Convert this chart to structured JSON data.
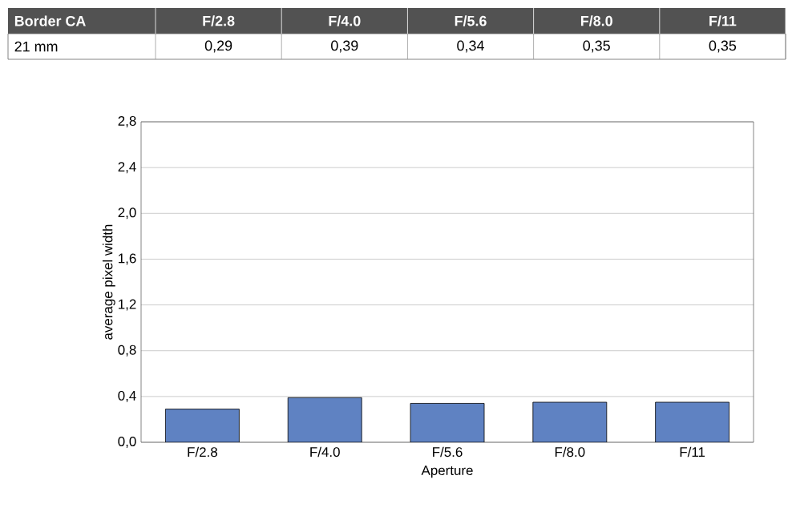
{
  "chart_data": {
    "type": "bar",
    "categories": [
      "F/2.8",
      "F/4.0",
      "F/5.6",
      "F/8.0",
      "F/11"
    ],
    "values": [
      0.29,
      0.39,
      0.34,
      0.35,
      0.35
    ],
    "value_labels": [
      "0,29",
      "0,39",
      "0,34",
      "0,35",
      "0,35"
    ],
    "color": "#5f82c2",
    "xlabel": "Aperture",
    "ylabel": "average pixel width",
    "annotations": [
      "Border CA",
      "21 mm"
    ],
    "ylim": [
      0,
      2.8
    ],
    "yticks": [
      {
        "value": 0,
        "label": "0,0"
      },
      {
        "value": 0.4,
        "label": "0,4"
      },
      {
        "value": 0.8,
        "label": "0,8"
      },
      {
        "value": 1.2,
        "label": "1,2"
      },
      {
        "value": 1.6,
        "label": "1,6"
      },
      {
        "value": 2.0,
        "label": "2,0"
      },
      {
        "value": 2.4,
        "label": "2,4"
      },
      {
        "value": 2.8,
        "label": "2,8"
      }
    ],
    "grid": "y"
  }
}
